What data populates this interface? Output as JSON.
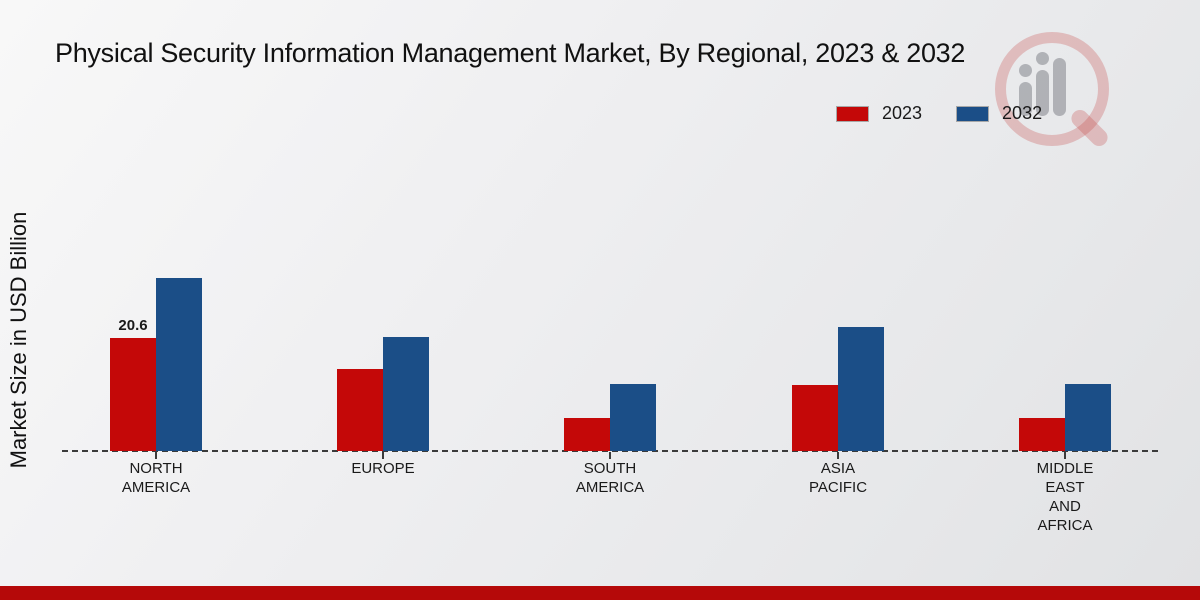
{
  "title": "Physical Security Information Management Market, By Regional, 2023 & 2032",
  "y_axis_label": "Market Size in USD Billion",
  "legend": [
    {
      "label": "2023",
      "color": "#c40808"
    },
    {
      "label": "2032",
      "color": "#1b4e87"
    }
  ],
  "colors": {
    "series_2023": "#c40808",
    "series_2032": "#1b4e87",
    "footer_bar": "#b50909",
    "baseline": "#3b3b3b"
  },
  "watermark": {
    "name": "market-research-magnifier-logo"
  },
  "chart_data": {
    "type": "bar",
    "categories": [
      "NORTH AMERICA",
      "EUROPE",
      "SOUTH AMERICA",
      "ASIA PACIFIC",
      "MIDDLE EAST AND AFRICA"
    ],
    "category_lines": [
      [
        "NORTH",
        "AMERICA"
      ],
      [
        "EUROPE"
      ],
      [
        "SOUTH",
        "AMERICA"
      ],
      [
        "ASIA",
        "PACIFIC"
      ],
      [
        "MIDDLE",
        "EAST",
        "AND",
        "AFRICA"
      ]
    ],
    "series": [
      {
        "name": "2023",
        "color": "#c40808",
        "values": [
          20.6,
          15.0,
          6.0,
          12.0,
          6.0
        ]
      },
      {
        "name": "2032",
        "color": "#1b4e87",
        "values": [
          31.5,
          20.8,
          12.2,
          22.6,
          12.2
        ]
      }
    ],
    "bar_labels": [
      {
        "series_index": 0,
        "category_index": 0,
        "text": "20.6"
      }
    ],
    "title": "Physical Security Information Management Market, By Regional, 2023 & 2032",
    "xlabel": "",
    "ylabel": "Market Size in USD Billion",
    "ylim": [
      0,
      35
    ],
    "grid": false,
    "baseline_style": "dashed",
    "legend_position": "top-right"
  }
}
